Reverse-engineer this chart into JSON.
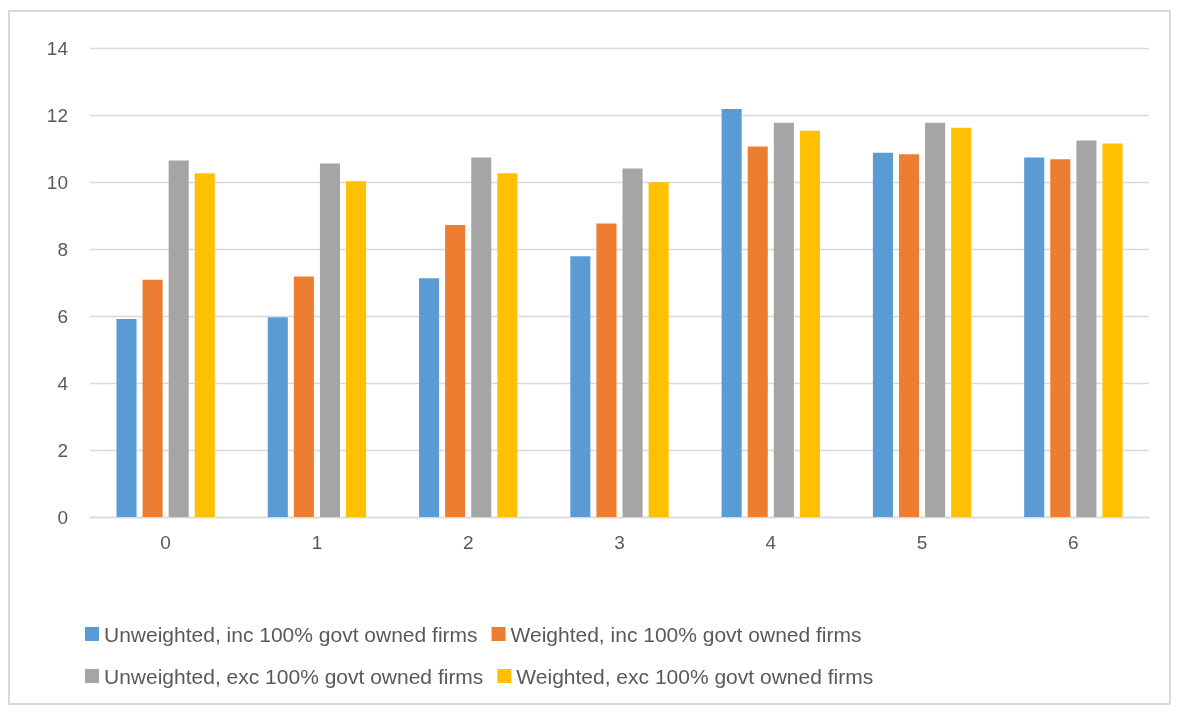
{
  "chart_data": {
    "type": "bar",
    "categories": [
      "0",
      "1",
      "2",
      "3",
      "4",
      "5",
      "6"
    ],
    "series": [
      {
        "name": "Unweighted, inc 100% govt owned firms",
        "color": "#5b9bd5",
        "values": [
          5.91,
          5.96,
          7.13,
          7.78,
          12.18,
          10.87,
          10.73
        ]
      },
      {
        "name": "Weighted, inc 100% govt owned firms",
        "color": "#ed7d31",
        "values": [
          7.08,
          7.18,
          8.72,
          8.76,
          11.06,
          10.83,
          10.68
        ]
      },
      {
        "name": "Unweighted, exc 100% govt owned firms",
        "color": "#a5a5a5",
        "values": [
          10.64,
          10.55,
          10.73,
          10.4,
          11.77,
          11.77,
          11.24
        ]
      },
      {
        "name": "Weighted, exc 100% govt owned firms",
        "color": "#ffc000",
        "values": [
          10.26,
          10.02,
          10.26,
          9.99,
          11.53,
          11.62,
          11.15
        ]
      }
    ],
    "ylim": [
      0,
      14
    ],
    "yticks": [
      0,
      2,
      4,
      6,
      8,
      10,
      12,
      14
    ],
    "grid": "y",
    "legend": "bottom"
  }
}
